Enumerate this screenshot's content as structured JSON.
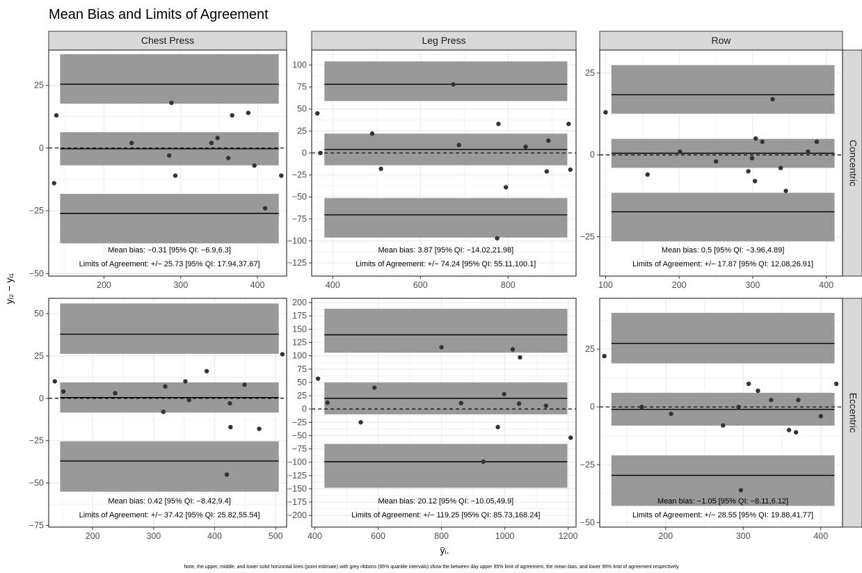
{
  "title": "Mean Bias and Limits of Agreement",
  "ylabel": "yᵢ₂ − yᵢ₁",
  "xlabel": "ȳᵢ.",
  "note": "Note, the upper, middle, and lower solid horizontal lines (point estimate) with grey ribbons (95% quantile intervals) show the between day upper 95% limit of agreement, the mean bias, and lower 95% limit of agreement respectively",
  "colors": {
    "ribbon": "#999999",
    "point": "#333333",
    "strip": "#d9d9d9",
    "grid": "#ebebeb"
  },
  "col_labels": [
    "Chest Press",
    "Leg Press",
    "Row"
  ],
  "row_labels": [
    "Concentric",
    "Eccentric"
  ],
  "chart_data": [
    {
      "type": "scatter",
      "exercise": "Chest Press",
      "phase": "Concentric",
      "xlim": [
        128,
        438
      ],
      "ylim": [
        -51,
        39
      ],
      "xticks": [
        200,
        300,
        400
      ],
      "yticks": [
        -50,
        -25,
        0,
        25
      ],
      "mean_bias": {
        "value": -0.31,
        "lower": -6.9,
        "upper": 6.3
      },
      "loa_upper": {
        "value": 25.42,
        "lower": 17.63,
        "upper": 37.36
      },
      "loa_lower": {
        "value": -26.04,
        "lower": -37.98,
        "upper": -18.25
      },
      "annotations": [
        "Mean bias: −0.31 [95% QI: −6.9,6.3]",
        "Limits of Agreement: +/− 25.73 [95% QI: 17.94,37.67]"
      ],
      "points": [
        [
          135,
          -14
        ],
        [
          138,
          13
        ],
        [
          236,
          2
        ],
        [
          285,
          -3
        ],
        [
          288,
          18
        ],
        [
          293,
          -11
        ],
        [
          340,
          2
        ],
        [
          348,
          4
        ],
        [
          362,
          -4
        ],
        [
          367,
          13
        ],
        [
          388,
          14
        ],
        [
          396,
          -7
        ],
        [
          410,
          -24
        ],
        [
          431,
          -11
        ]
      ]
    },
    {
      "type": "scatter",
      "exercise": "Leg Press",
      "phase": "Concentric",
      "xlim": [
        352,
        955
      ],
      "ylim": [
        -140,
        117
      ],
      "xticks": [
        400,
        600,
        800
      ],
      "yticks": [
        -125,
        -100,
        -75,
        -50,
        -25,
        0,
        25,
        50,
        75,
        100
      ],
      "mean_bias": {
        "value": 3.87,
        "lower": -14.02,
        "upper": 21.98
      },
      "loa_upper": {
        "value": 78.11,
        "lower": 58.98,
        "upper": 104.1
      },
      "loa_lower": {
        "value": -70.37,
        "lower": -96.23,
        "upper": -51.24
      },
      "annotations": [
        "Mean bias: 3.87 [95% QI: −14.02,21.98]",
        "Limits of Agreement: +/− 74.24 [95% QI: 55.11,100.1]"
      ],
      "points": [
        [
          365,
          45
        ],
        [
          372,
          0
        ],
        [
          490,
          22
        ],
        [
          510,
          -18
        ],
        [
          675,
          78
        ],
        [
          688,
          9
        ],
        [
          775,
          -97
        ],
        [
          778,
          33
        ],
        [
          795,
          -39
        ],
        [
          840,
          7
        ],
        [
          888,
          -21
        ],
        [
          892,
          14
        ],
        [
          938,
          33
        ],
        [
          942,
          -19
        ]
      ]
    },
    {
      "type": "scatter",
      "exercise": "Row",
      "phase": "Concentric",
      "xlim": [
        92,
        422
      ],
      "ylim": [
        -37,
        32
      ],
      "xticks": [
        100,
        200,
        300,
        400
      ],
      "yticks": [
        -25,
        0,
        25
      ],
      "mean_bias": {
        "value": 0.5,
        "lower": -3.96,
        "upper": 4.89
      },
      "loa_upper": {
        "value": 18.37,
        "lower": 12.58,
        "upper": 27.41
      },
      "loa_lower": {
        "value": -17.37,
        "lower": -26.41,
        "upper": -11.58
      },
      "annotations": [
        "Mean bias: 0.5 [95% QI: −3.96,4.89]",
        "Limits of Agreement: +/− 17.87 [95% QI: 12.08,26.91]"
      ],
      "points": [
        [
          100,
          13
        ],
        [
          157,
          -6
        ],
        [
          201,
          1
        ],
        [
          250,
          -2
        ],
        [
          294,
          -5
        ],
        [
          299,
          -1
        ],
        [
          303,
          -8
        ],
        [
          304,
          5
        ],
        [
          313,
          4
        ],
        [
          327,
          17
        ],
        [
          338,
          -4
        ],
        [
          345,
          -11
        ],
        [
          375,
          1
        ],
        [
          387,
          4
        ]
      ]
    },
    {
      "type": "scatter",
      "exercise": "Chest Press",
      "phase": "Eccentric",
      "xlim": [
        128,
        518
      ],
      "ylim": [
        -76,
        59
      ],
      "xticks": [
        200,
        300,
        400,
        500
      ],
      "yticks": [
        -75,
        -50,
        -25,
        0,
        25,
        50
      ],
      "mean_bias": {
        "value": 0.42,
        "lower": -8.42,
        "upper": 9.4
      },
      "loa_upper": {
        "value": 37.84,
        "lower": 26.24,
        "upper": 55.96
      },
      "loa_lower": {
        "value": -37.0,
        "lower": -55.12,
        "upper": -25.4
      },
      "annotations": [
        "Mean bias: 0.42 [95% QI: −8.42,9.4]",
        "Limits of Agreement: +/− 37.42 [95% QI: 25.82,55.54]"
      ],
      "points": [
        [
          138,
          10
        ],
        [
          152,
          4
        ],
        [
          237,
          3
        ],
        [
          316,
          -8
        ],
        [
          319,
          7
        ],
        [
          352,
          10
        ],
        [
          358,
          -1
        ],
        [
          387,
          16
        ],
        [
          420,
          -45
        ],
        [
          425,
          -3
        ],
        [
          426,
          -17
        ],
        [
          449,
          8
        ],
        [
          473,
          -18
        ],
        [
          511,
          26
        ]
      ]
    },
    {
      "type": "scatter",
      "exercise": "Leg Press",
      "phase": "Eccentric",
      "xlim": [
        390,
        1225
      ],
      "ylim": [
        -222,
        208
      ],
      "xticks": [
        400,
        600,
        800,
        1000,
        1200
      ],
      "yticks": [
        -200,
        -175,
        -150,
        -125,
        -100,
        -75,
        -50,
        -25,
        0,
        25,
        50,
        75,
        100,
        125,
        150,
        175,
        200
      ],
      "mean_bias": {
        "value": 20.12,
        "lower": -10.05,
        "upper": 49.9
      },
      "loa_upper": {
        "value": 139.37,
        "lower": 105.85,
        "upper": 188.36
      },
      "loa_lower": {
        "value": -99.13,
        "lower": -148.12,
        "upper": -65.61
      },
      "annotations": [
        "Mean bias: 20.12 [95% QI: −10.05,49.9]",
        "Limits of Agreement: +/− 119.25 [95% QI: 85.73,168.24]"
      ],
      "points": [
        [
          410,
          57
        ],
        [
          440,
          12
        ],
        [
          545,
          -25
        ],
        [
          588,
          40
        ],
        [
          800,
          116
        ],
        [
          862,
          11
        ],
        [
          932,
          -99
        ],
        [
          978,
          -34
        ],
        [
          998,
          28
        ],
        [
          1025,
          112
        ],
        [
          1045,
          10
        ],
        [
          1048,
          97
        ],
        [
          1130,
          6
        ],
        [
          1208,
          -54
        ]
      ]
    },
    {
      "type": "scatter",
      "exercise": "Row",
      "phase": "Eccentric",
      "xlim": [
        115,
        428
      ],
      "ylim": [
        -52,
        47
      ],
      "xticks": [
        200,
        300,
        400
      ],
      "yticks": [
        -50,
        -25,
        0,
        25
      ],
      "mean_bias": {
        "value": -1.05,
        "lower": -8.11,
        "upper": 6.12
      },
      "loa_upper": {
        "value": 27.5,
        "lower": 18.83,
        "upper": 40.72
      },
      "loa_lower": {
        "value": -29.6,
        "lower": -42.82,
        "upper": -20.93
      },
      "annotations": [
        "Mean bias: −1.05 [95% QI: −8.11,6.12]",
        "Limits of Agreement: +/− 28.55 [95% QI: 19.88,41.77]"
      ],
      "points": [
        [
          121,
          22
        ],
        [
          169,
          0
        ],
        [
          207,
          -3
        ],
        [
          274,
          -8
        ],
        [
          297,
          -36
        ],
        [
          294,
          0
        ],
        [
          307,
          10
        ],
        [
          319,
          7
        ],
        [
          336,
          3
        ],
        [
          359,
          -10
        ],
        [
          368,
          -11
        ],
        [
          371,
          3
        ],
        [
          400,
          -4
        ],
        [
          420,
          10
        ]
      ]
    }
  ]
}
